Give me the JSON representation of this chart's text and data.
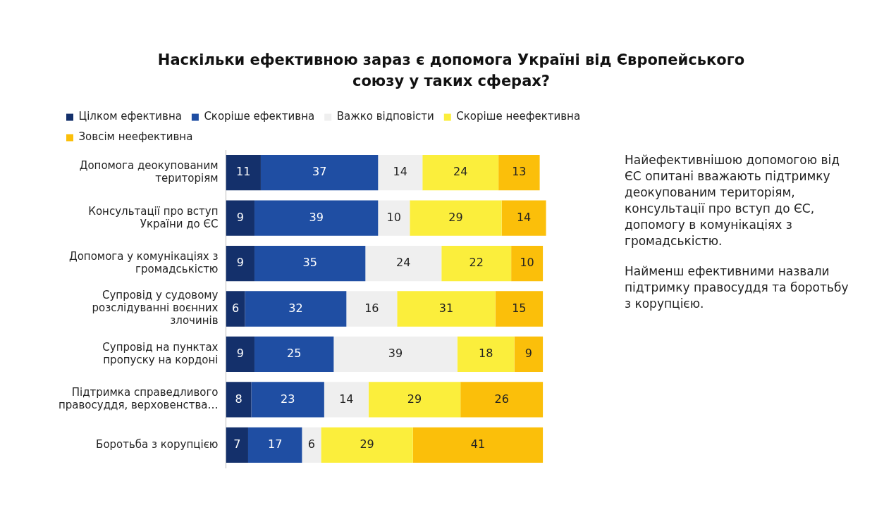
{
  "chart_data": {
    "type": "bar",
    "orientation": "horizontal",
    "stacked": true,
    "data_labels": true,
    "legend": "top left",
    "tick_labels": "y",
    "title": "Наскільки ефективною зараз є допомога Україні від Європейського союзу у таких сферах?",
    "categories": [
      "Допомога деокупованим територіям",
      "Консультації про вступ України до ЄС",
      "Допомога у комунікаціях з громадськістю",
      "Супровід у судовому розслідуванні воєнних злочинів",
      "Супровід на пунктах пропуску на кордоні",
      "Підтримка справедливого правосуддя, верховенства…",
      "Боротьба з корупцією"
    ],
    "series": [
      {
        "name": "Цілком ефективна",
        "color": "#14306b",
        "values": [
          11,
          9,
          9,
          6,
          9,
          8,
          7
        ]
      },
      {
        "name": "Скоріше ефективна",
        "color": "#1f4ea3",
        "values": [
          37,
          39,
          35,
          32,
          25,
          23,
          17
        ]
      },
      {
        "name": "Важко відповісти",
        "color": "#efefef",
        "values": [
          14,
          10,
          24,
          16,
          39,
          14,
          6
        ]
      },
      {
        "name": "Скоріше неефективна",
        "color": "#fbee3c",
        "values": [
          24,
          29,
          22,
          31,
          18,
          29,
          29
        ]
      },
      {
        "name": "Зовсім неефективна",
        "color": "#fbbf0a",
        "values": [
          13,
          14,
          10,
          15,
          9,
          26,
          41
        ]
      }
    ],
    "annotations": [
      "Найефективнішою допомогою від  ЄС опитані вважають підтримку деокупованим територіям, консультації про вступ до ЄС, допомогу в комунікаціях з громадськістю.",
      "Найменш ефективними назвали підтримку правосуддя та боротьбу з корупцією."
    ]
  }
}
